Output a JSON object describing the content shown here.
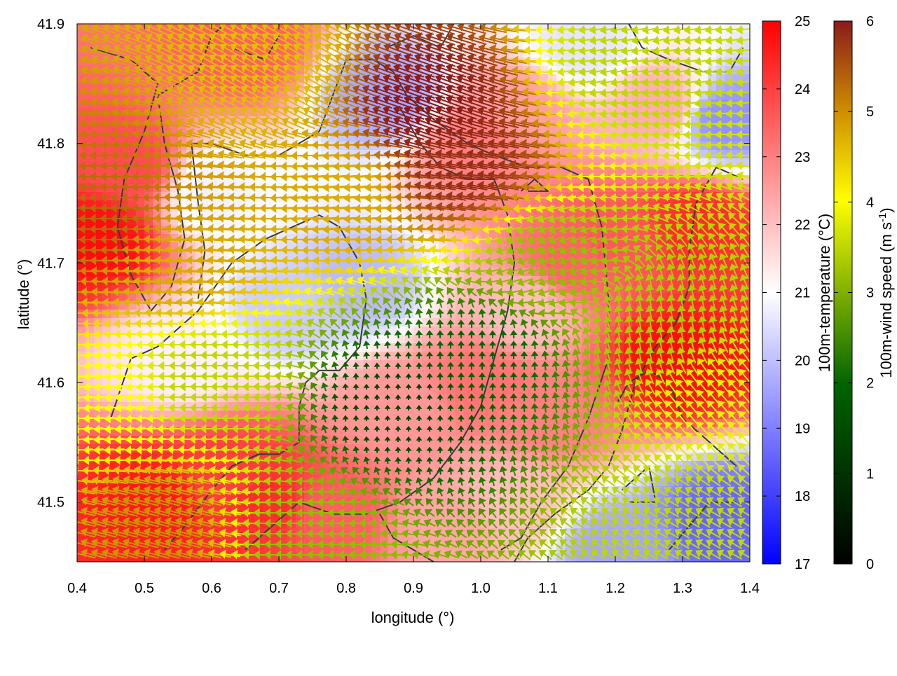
{
  "chart_data": {
    "type": "heatmap",
    "xlabel": "longitude (°)",
    "ylabel": "latitude (°)",
    "xlim": [
      0.4,
      1.4
    ],
    "ylim": [
      41.45,
      41.9
    ],
    "x_ticks": [
      "0.4",
      "0.5",
      "0.6",
      "0.7",
      "0.8",
      "0.9",
      "1.0",
      "1.1",
      "1.2",
      "1.3",
      "1.4"
    ],
    "y_ticks": [
      "41.5",
      "41.6",
      "41.7",
      "41.8",
      "41.9"
    ],
    "colorbars": [
      {
        "label": "100m-temperature (°C)",
        "range": [
          17,
          25
        ],
        "ticks": [
          "17",
          "18",
          "19",
          "20",
          "21",
          "22",
          "23",
          "24",
          "25"
        ],
        "colors": [
          "#0000ff",
          "#ffffff",
          "#ff0000"
        ]
      },
      {
        "label_main": "100m-wind speed (m s",
        "label_sup": "-1",
        "label_end": ")",
        "range": [
          0,
          6
        ],
        "ticks": [
          "0",
          "1",
          "2",
          "3",
          "4",
          "5",
          "6"
        ],
        "colors": [
          "#000000",
          "#006400",
          "#7fb000",
          "#ffff00",
          "#d09000",
          "#8b1a1a"
        ]
      }
    ],
    "temperature_hotspots": [
      {
        "lon": 0.43,
        "lat": 41.72,
        "t": 24.8
      },
      {
        "lon": 0.48,
        "lat": 41.78,
        "t": 23.8
      },
      {
        "lon": 0.52,
        "lat": 41.5,
        "t": 24.6
      },
      {
        "lon": 0.62,
        "lat": 41.52,
        "t": 24.0
      },
      {
        "lon": 0.68,
        "lat": 41.5,
        "t": 24.3
      },
      {
        "lon": 0.78,
        "lat": 41.49,
        "t": 23.5
      },
      {
        "lon": 0.82,
        "lat": 41.68,
        "t": 19.9
      },
      {
        "lon": 0.86,
        "lat": 41.84,
        "t": 19.6
      },
      {
        "lon": 0.72,
        "lat": 41.66,
        "t": 20.2
      },
      {
        "lon": 0.55,
        "lat": 41.62,
        "t": 21.2
      },
      {
        "lon": 0.88,
        "lat": 41.58,
        "t": 22.6
      },
      {
        "lon": 1.0,
        "lat": 41.6,
        "t": 23.2
      },
      {
        "lon": 1.1,
        "lat": 41.57,
        "t": 23.0
      },
      {
        "lon": 1.14,
        "lat": 41.7,
        "t": 23.4
      },
      {
        "lon": 1.07,
        "lat": 41.66,
        "t": 22.0
      },
      {
        "lon": 1.2,
        "lat": 41.72,
        "t": 23.6
      },
      {
        "lon": 1.29,
        "lat": 41.62,
        "t": 24.8
      },
      {
        "lon": 1.32,
        "lat": 41.73,
        "t": 24.3
      },
      {
        "lon": 1.27,
        "lat": 41.83,
        "t": 22.3
      },
      {
        "lon": 1.15,
        "lat": 41.88,
        "t": 20.6
      },
      {
        "lon": 1.36,
        "lat": 41.82,
        "t": 19.3
      },
      {
        "lon": 1.36,
        "lat": 41.48,
        "t": 18.6
      },
      {
        "lon": 1.2,
        "lat": 41.46,
        "t": 19.6
      },
      {
        "lon": 1.0,
        "lat": 41.8,
        "t": 23.0
      },
      {
        "lon": 1.06,
        "lat": 41.83,
        "t": 22.5
      },
      {
        "lon": 0.65,
        "lat": 41.88,
        "t": 23.5
      },
      {
        "lon": 0.95,
        "lat": 41.48,
        "t": 22.4
      },
      {
        "lon": 0.6,
        "lat": 41.76,
        "t": 20.8
      },
      {
        "lon": 1.05,
        "lat": 41.5,
        "t": 22.0
      }
    ],
    "wind_regions": [
      {
        "lon": 0.45,
        "lat": 41.74,
        "speed": 5.2,
        "dir_deg": 180
      },
      {
        "lon": 0.55,
        "lat": 41.7,
        "speed": 4.5,
        "dir_deg": 175
      },
      {
        "lon": 0.52,
        "lat": 41.48,
        "speed": 4.8,
        "dir_deg": 165
      },
      {
        "lon": 0.93,
        "lat": 41.83,
        "speed": 6.0,
        "dir_deg": 160
      },
      {
        "lon": 0.98,
        "lat": 41.78,
        "speed": 5.8,
        "dir_deg": 170
      },
      {
        "lon": 0.8,
        "lat": 41.76,
        "speed": 4.5,
        "dir_deg": 185
      },
      {
        "lon": 0.7,
        "lat": 41.86,
        "speed": 4.3,
        "dir_deg": 150
      },
      {
        "lon": 0.6,
        "lat": 41.6,
        "speed": 3.0,
        "dir_deg": 180
      },
      {
        "lon": 0.88,
        "lat": 41.58,
        "speed": 0.8,
        "dir_deg": 90
      },
      {
        "lon": 1.0,
        "lat": 41.62,
        "speed": 1.2,
        "dir_deg": 90
      },
      {
        "lon": 1.1,
        "lat": 41.7,
        "speed": 2.6,
        "dir_deg": 200
      },
      {
        "lon": 1.25,
        "lat": 41.65,
        "speed": 2.8,
        "dir_deg": 100
      },
      {
        "lon": 1.35,
        "lat": 41.58,
        "speed": 3.4,
        "dir_deg": 130
      },
      {
        "lon": 1.22,
        "lat": 41.86,
        "speed": 3.0,
        "dir_deg": 190
      },
      {
        "lon": 0.75,
        "lat": 41.47,
        "speed": 2.6,
        "dir_deg": 180
      },
      {
        "lon": 1.3,
        "lat": 41.48,
        "speed": 3.0,
        "dir_deg": 150
      },
      {
        "lon": 0.45,
        "lat": 41.58,
        "speed": 3.6,
        "dir_deg": 185
      }
    ],
    "contours": [
      [
        [
          0.42,
          41.88
        ],
        [
          0.48,
          41.87
        ],
        [
          0.52,
          41.85
        ],
        [
          0.5,
          41.81
        ],
        [
          0.47,
          41.77
        ],
        [
          0.46,
          41.73
        ],
        [
          0.48,
          41.69
        ],
        [
          0.51,
          41.66
        ],
        [
          0.54,
          41.68
        ],
        [
          0.56,
          41.72
        ],
        [
          0.55,
          41.76
        ],
        [
          0.53,
          41.8
        ],
        [
          0.52,
          41.84
        ],
        [
          0.55,
          41.85
        ],
        [
          0.58,
          41.86
        ],
        [
          0.6,
          41.89
        ],
        [
          0.62,
          41.9
        ]
      ],
      [
        [
          0.42,
          41.57
        ],
        [
          0.45,
          41.57
        ],
        [
          0.48,
          41.62
        ],
        [
          0.52,
          41.63
        ],
        [
          0.58,
          41.66
        ],
        [
          0.63,
          41.7
        ],
        [
          0.68,
          41.72
        ],
        [
          0.72,
          41.73
        ],
        [
          0.76,
          41.74
        ],
        [
          0.79,
          41.73
        ],
        [
          0.82,
          41.7
        ],
        [
          0.83,
          41.67
        ],
        [
          0.82,
          41.63
        ],
        [
          0.79,
          41.61
        ],
        [
          0.76,
          41.61
        ],
        [
          0.74,
          41.6
        ],
        [
          0.73,
          41.58
        ],
        [
          0.73,
          41.55
        ],
        [
          0.7,
          41.54
        ],
        [
          0.67,
          41.54
        ],
        [
          0.63,
          41.53
        ],
        [
          0.6,
          41.51
        ],
        [
          0.56,
          41.48
        ],
        [
          0.53,
          41.46
        ]
      ],
      [
        [
          0.57,
          41.8
        ],
        [
          0.6,
          41.8
        ],
        [
          0.65,
          41.79
        ],
        [
          0.7,
          41.79
        ],
        [
          0.76,
          41.81
        ],
        [
          0.78,
          41.84
        ],
        [
          0.8,
          41.87
        ],
        [
          0.84,
          41.87
        ],
        [
          0.87,
          41.86
        ],
        [
          0.89,
          41.84
        ],
        [
          0.93,
          41.82
        ],
        [
          0.98,
          41.8
        ],
        [
          1.02,
          41.79
        ],
        [
          1.07,
          41.78
        ],
        [
          1.12,
          41.78
        ],
        [
          1.16,
          41.77
        ],
        [
          1.18,
          41.73
        ],
        [
          1.19,
          41.67
        ],
        [
          1.19,
          41.62
        ],
        [
          1.16,
          41.57
        ],
        [
          1.13,
          41.53
        ],
        [
          1.09,
          41.5
        ],
        [
          1.06,
          41.47
        ],
        [
          1.03,
          41.46
        ]
      ],
      [
        [
          0.57,
          41.8
        ],
        [
          0.58,
          41.75
        ],
        [
          0.59,
          41.71
        ],
        [
          0.58,
          41.67
        ]
      ],
      [
        [
          0.88,
          41.83
        ],
        [
          0.91,
          41.8
        ],
        [
          0.94,
          41.78
        ],
        [
          0.98,
          41.77
        ],
        [
          1.02,
          41.77
        ],
        [
          1.04,
          41.74
        ],
        [
          1.05,
          41.7
        ],
        [
          1.04,
          41.66
        ],
        [
          1.02,
          41.62
        ],
        [
          1.0,
          41.58
        ],
        [
          0.97,
          41.55
        ],
        [
          0.93,
          41.52
        ],
        [
          0.88,
          41.5
        ],
        [
          0.83,
          41.49
        ],
        [
          0.78,
          41.49
        ],
        [
          0.73,
          41.5
        ],
        [
          0.69,
          41.48
        ],
        [
          0.65,
          41.46
        ]
      ],
      [
        [
          0.85,
          41.49
        ],
        [
          0.87,
          41.47
        ],
        [
          0.9,
          41.46
        ],
        [
          0.93,
          41.45
        ]
      ],
      [
        [
          1.22,
          41.9
        ],
        [
          1.24,
          41.88
        ],
        [
          1.28,
          41.87
        ],
        [
          1.33,
          41.86
        ],
        [
          1.37,
          41.86
        ],
        [
          1.39,
          41.88
        ]
      ],
      [
        [
          1.39,
          41.77
        ],
        [
          1.35,
          41.78
        ],
        [
          1.32,
          41.75
        ],
        [
          1.31,
          41.71
        ],
        [
          1.31,
          41.68
        ],
        [
          1.29,
          41.65
        ],
        [
          1.26,
          41.63
        ],
        [
          1.23,
          41.6
        ],
        [
          1.21,
          41.56
        ],
        [
          1.19,
          41.53
        ],
        [
          1.16,
          41.51
        ],
        [
          1.11,
          41.49
        ],
        [
          1.07,
          41.47
        ],
        [
          1.05,
          41.45
        ]
      ],
      [
        [
          1.07,
          41.76
        ],
        [
          1.1,
          41.76
        ],
        [
          1.08,
          41.77
        ],
        [
          1.06,
          41.76
        ]
      ],
      [
        [
          1.21,
          41.51
        ],
        [
          1.25,
          41.53
        ],
        [
          1.26,
          41.5
        ],
        [
          1.22,
          41.5
        ]
      ],
      [
        [
          1.28,
          41.46
        ],
        [
          1.31,
          41.48
        ],
        [
          1.34,
          41.5
        ],
        [
          1.38,
          41.5
        ]
      ],
      [
        [
          0.63,
          41.88
        ],
        [
          0.68,
          41.87
        ],
        [
          0.7,
          41.89
        ]
      ],
      [
        [
          0.86,
          41.88
        ],
        [
          0.9,
          41.89
        ],
        [
          0.94,
          41.88
        ],
        [
          0.96,
          41.9
        ]
      ],
      [
        [
          1.2,
          41.58
        ],
        [
          1.22,
          41.6
        ],
        [
          1.25,
          41.61
        ],
        [
          1.28,
          41.6
        ],
        [
          1.3,
          41.57
        ],
        [
          1.34,
          41.55
        ],
        [
          1.38,
          41.53
        ]
      ]
    ]
  }
}
